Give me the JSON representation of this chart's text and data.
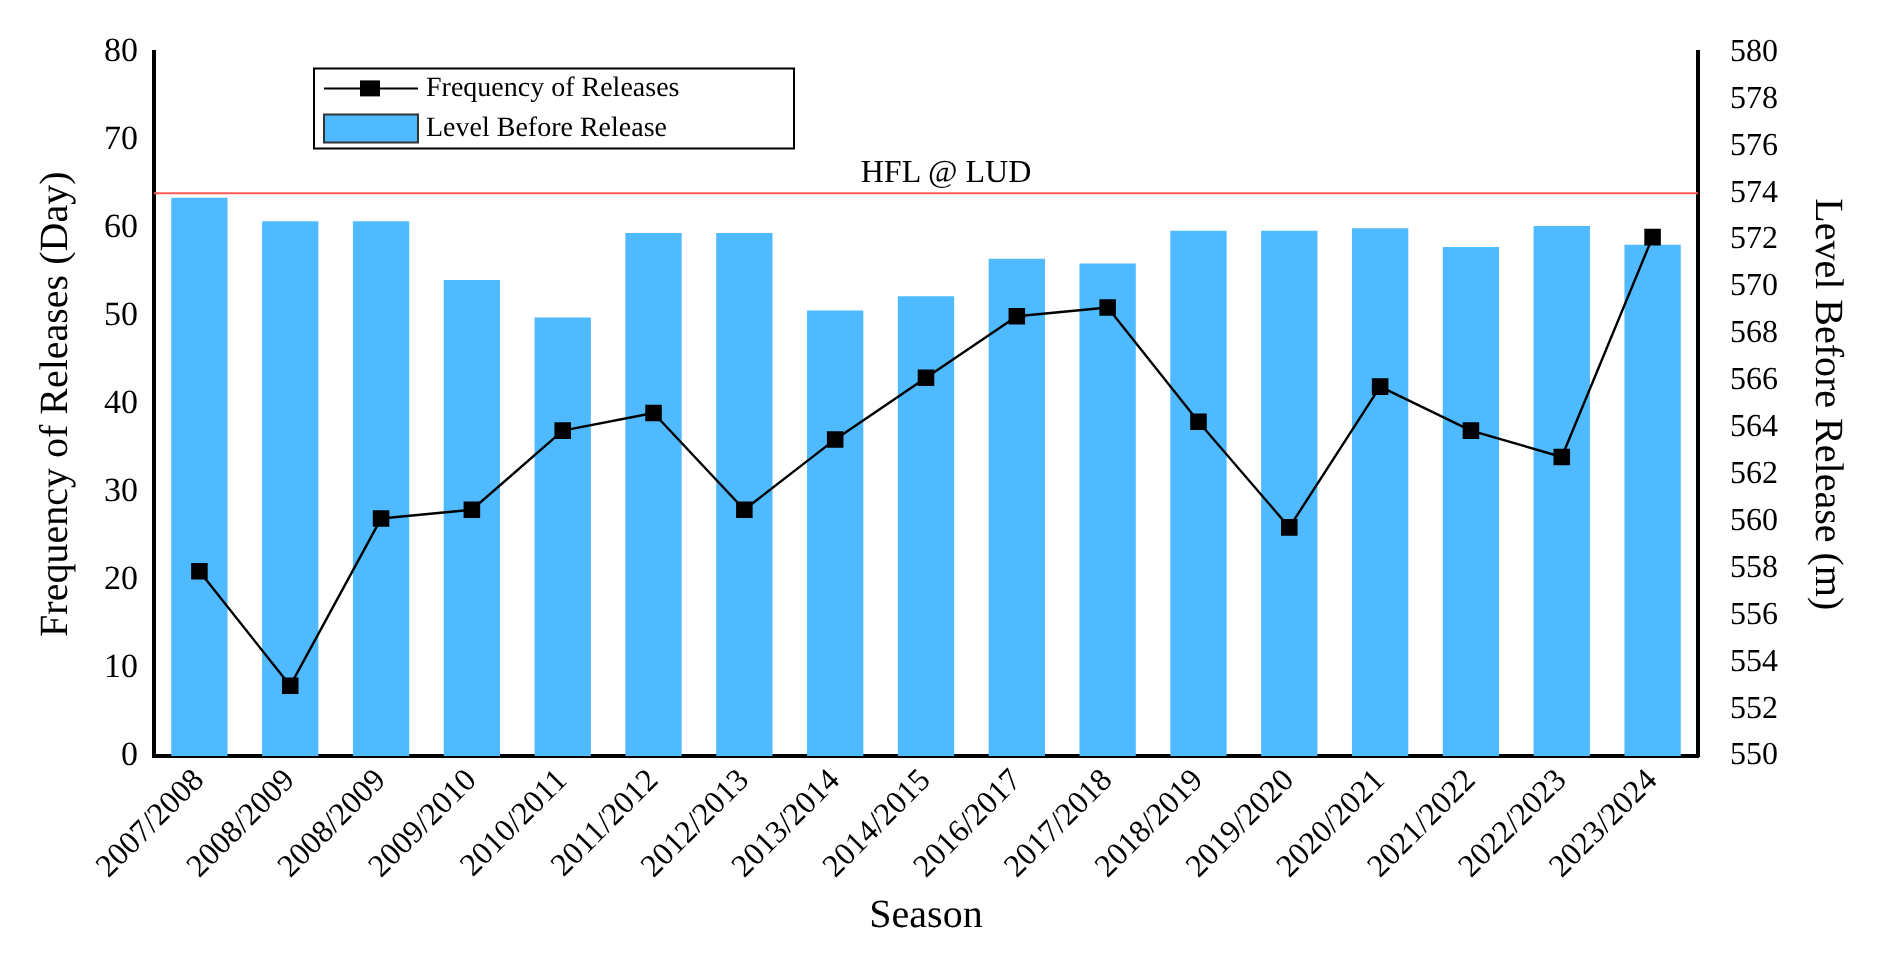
{
  "chart_data": {
    "type": "bar",
    "xlabel": "Season",
    "ylabel": "Frequency of Releases (Day)",
    "y2label": "Level Before Release (m)",
    "categories": [
      "2007/2008",
      "2008/2009",
      "2008/2009",
      "2009/2010",
      "2010/2011",
      "2011/2012",
      "2012/2013",
      "2013/2014",
      "2014/2015",
      "2016/2017",
      "2017/2018",
      "2018/2019",
      "2019/2020",
      "2020/2021",
      "2021/2022",
      "2022/2023",
      "2023/2024"
    ],
    "series": [
      {
        "name": "Frequency of Releases",
        "type": "line",
        "color": "#000000",
        "marker": "square",
        "line_style": "solid",
        "values": [
          21,
          8,
          27,
          28,
          37,
          39,
          28,
          36,
          43,
          50,
          51,
          38,
          26,
          42,
          37,
          34,
          59
        ]
      },
      {
        "name": "Level Before Release",
        "axis": "y2",
        "color": "#4fbaff",
        "values": [
          573.8,
          572.8,
          572.8,
          570.3,
          568.7,
          572.3,
          572.3,
          569.0,
          569.6,
          571.2,
          571.0,
          572.4,
          572.4,
          572.5,
          571.7,
          572.6,
          571.8
        ]
      }
    ],
    "ylim": [
      0,
      80
    ],
    "yticks": [
      0,
      10,
      20,
      30,
      40,
      50,
      60,
      70,
      80
    ],
    "y2lim": [
      550,
      580
    ],
    "y2ticks": [
      550,
      552,
      554,
      556,
      558,
      560,
      562,
      564,
      566,
      568,
      570,
      572,
      574,
      576,
      578,
      580
    ],
    "ref_lines": [
      {
        "axis": "y2",
        "value": 574,
        "label": "HFL @ LUD",
        "color": "#ff5a5a"
      }
    ],
    "legend": "top left",
    "grid": false
  }
}
